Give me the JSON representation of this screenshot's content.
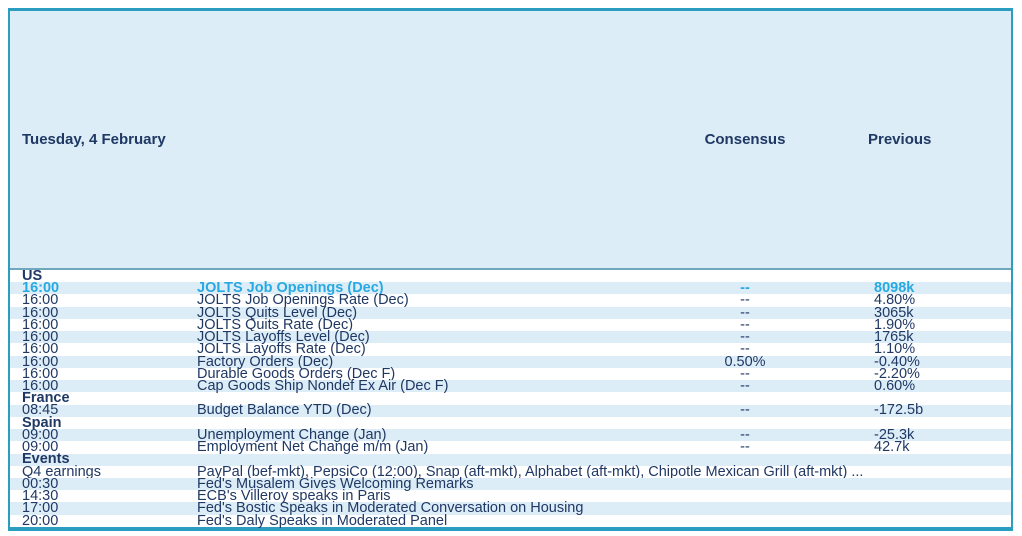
{
  "title": "Tuesday, 4 February",
  "columns": {
    "consensus": "Consensus",
    "previous": "Previous"
  },
  "rows": [
    {
      "kind": "section",
      "label": "US"
    },
    {
      "kind": "data",
      "time": "16:00",
      "event": "JOLTS Job Openings (Dec)",
      "consensus": "--",
      "previous": "8098k",
      "highlighted": true
    },
    {
      "kind": "data",
      "time": "16:00",
      "event": "JOLTS Job Openings Rate (Dec)",
      "consensus": "--",
      "previous": "4.80%"
    },
    {
      "kind": "data",
      "time": "16:00",
      "event": "JOLTS Quits Level (Dec)",
      "consensus": "--",
      "previous": "3065k"
    },
    {
      "kind": "data",
      "time": "16:00",
      "event": "JOLTS Quits Rate (Dec)",
      "consensus": "--",
      "previous": "1.90%"
    },
    {
      "kind": "data",
      "time": "16:00",
      "event": "JOLTS Layoffs Level (Dec)",
      "consensus": "--",
      "previous": "1765k"
    },
    {
      "kind": "data",
      "time": "16:00",
      "event": "JOLTS Layoffs Rate (Dec)",
      "consensus": "--",
      "previous": "1.10%"
    },
    {
      "kind": "data",
      "time": "16:00",
      "event": "Factory Orders (Dec)",
      "consensus": "0.50%",
      "previous": "-0.40%"
    },
    {
      "kind": "data",
      "time": "16:00",
      "event": "Durable Goods Orders (Dec F)",
      "consensus": "--",
      "previous": "-2.20%"
    },
    {
      "kind": "data",
      "time": "16:00",
      "event": "Cap Goods Ship Nondef Ex Air (Dec F)",
      "consensus": "--",
      "previous": "0.60%"
    },
    {
      "kind": "section",
      "label": "France"
    },
    {
      "kind": "data",
      "time": "08:45",
      "event": "Budget Balance YTD (Dec)",
      "consensus": "--",
      "previous": "-172.5b"
    },
    {
      "kind": "section",
      "label": "Spain"
    },
    {
      "kind": "data",
      "time": "09:00",
      "event": "Unemployment Change (Jan)",
      "consensus": "--",
      "previous": "-25.3k"
    },
    {
      "kind": "data",
      "time": "09:00",
      "event": "Employment Net Change m/m (Jan)",
      "consensus": "--",
      "previous": "42.7k"
    },
    {
      "kind": "section",
      "label": "Events"
    },
    {
      "kind": "data",
      "time": "Q4 earnings",
      "event": "PayPal (bef-mkt), PepsiCo (12:00), Snap (aft-mkt), Alphabet (aft-mkt), Chipotle Mexican Grill (aft-mkt) ...",
      "consensus": "",
      "previous": ""
    },
    {
      "kind": "data",
      "time": "00:30",
      "event": "Fed's Musalem Gives Welcoming Remarks",
      "consensus": "",
      "previous": ""
    },
    {
      "kind": "data",
      "time": "14:30",
      "event": "ECB's Villeroy speaks in Paris",
      "consensus": "",
      "previous": ""
    },
    {
      "kind": "data",
      "time": "17:00",
      "event": "Fed's Bostic Speaks in Moderated Conversation on Housing",
      "consensus": "",
      "previous": ""
    },
    {
      "kind": "data",
      "time": "20:00",
      "event": "Fed's Daly Speaks in Moderated Panel",
      "consensus": "",
      "previous": ""
    }
  ],
  "colors": {
    "border_teal": "#2B9DC0",
    "header_underline": "#6FA8BC",
    "zebra_blue": "#DCEDF7",
    "text_navy": "#1F3864",
    "highlight_cyan": "#29A9E1"
  }
}
